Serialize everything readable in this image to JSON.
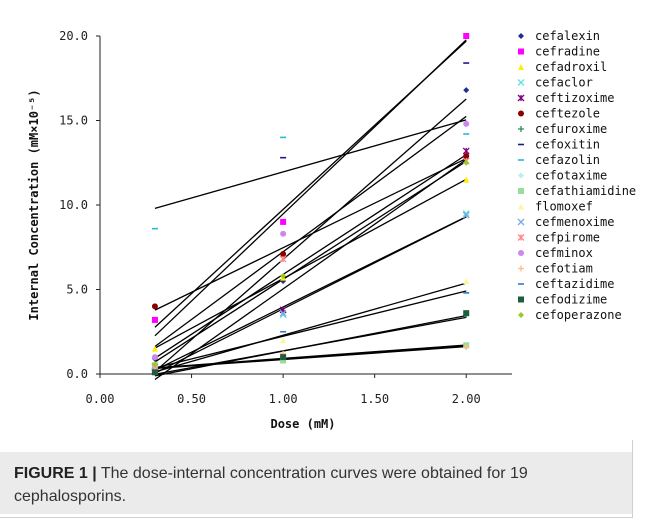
{
  "caption": {
    "label": "FIGURE 1 |",
    "text": " The dose-internal concentration curves were obtained for 19 cephalosporins."
  },
  "chart_data": {
    "type": "scatter",
    "title": "",
    "xlabel": "Dose (mM)",
    "ylabel": "Internal Concentration (mM×10⁻⁵)",
    "xlim": [
      0,
      2.25
    ],
    "ylim": [
      0,
      20
    ],
    "xticks": [
      "0.00",
      "0.50",
      "1.00",
      "1.50",
      "2.00"
    ],
    "yticks": [
      "0.0",
      "5.0",
      "10.0",
      "15.0",
      "20.0"
    ],
    "grid": false,
    "legend_position": "right",
    "x": [
      0.3,
      1.0,
      2.0
    ],
    "series": [
      {
        "name": "cefalexin",
        "marker": "diamond",
        "color": "#1f2f8f",
        "values": [
          0.9,
          5.5,
          16.8
        ]
      },
      {
        "name": "cefradine",
        "marker": "square",
        "color": "#ff00ff",
        "values": [
          3.2,
          9.0,
          20.0
        ]
      },
      {
        "name": "cefadroxil",
        "marker": "triangle",
        "color": "#ffee00",
        "values": [
          1.5,
          5.7,
          11.5
        ]
      },
      {
        "name": "cefaclor",
        "marker": "x",
        "color": "#66dddd",
        "values": [
          0.5,
          3.5,
          9.5
        ]
      },
      {
        "name": "ceftizoxime",
        "marker": "star",
        "color": "#800080",
        "values": [
          0.4,
          3.8,
          13.2
        ]
      },
      {
        "name": "ceftezole",
        "marker": "circle",
        "color": "#8b0000",
        "values": [
          4.0,
          7.1,
          12.9
        ]
      },
      {
        "name": "cefuroxime",
        "marker": "plus",
        "color": "#2e8b57",
        "values": [
          0.2,
          1.0,
          3.5
        ]
      },
      {
        "name": "cefoxitin",
        "marker": "dash",
        "color": "#1a1a8c",
        "values": [
          0.3,
          12.8,
          18.4
        ]
      },
      {
        "name": "cefazolin",
        "marker": "dash",
        "color": "#22bbdd",
        "values": [
          8.6,
          14.0,
          14.2
        ]
      },
      {
        "name": "cefotaxime",
        "marker": "diamond",
        "color": "#bbeeee",
        "values": [
          0.3,
          0.9,
          1.6
        ]
      },
      {
        "name": "cefathiamidine",
        "marker": "square",
        "color": "#99dd99",
        "values": [
          0.4,
          0.8,
          1.7
        ]
      },
      {
        "name": "flomoxef",
        "marker": "triangle",
        "color": "#fff599",
        "values": [
          0.3,
          2.0,
          5.5
        ]
      },
      {
        "name": "cefmenoxime",
        "marker": "x",
        "color": "#77aadd",
        "values": [
          0.2,
          3.6,
          9.4
        ]
      },
      {
        "name": "cefpirome",
        "marker": "star",
        "color": "#ff8888",
        "values": [
          0.4,
          6.8,
          12.6
        ]
      },
      {
        "name": "cefminox",
        "marker": "circle",
        "color": "#cc88ee",
        "values": [
          1.0,
          8.3,
          14.8
        ]
      },
      {
        "name": "cefotiam",
        "marker": "plus",
        "color": "#ffbb88",
        "values": [
          0.2,
          1.2,
          1.6
        ]
      },
      {
        "name": "ceftazidime",
        "marker": "dash",
        "color": "#3377cc",
        "values": [
          0.2,
          2.5,
          4.8
        ]
      },
      {
        "name": "cefodizime",
        "marker": "square",
        "color": "#1e5e3e",
        "values": [
          0.1,
          1.0,
          3.6
        ]
      },
      {
        "name": "cefoperazone",
        "marker": "diamond",
        "color": "#99cc22",
        "values": [
          0.6,
          5.8,
          12.5
        ]
      }
    ]
  }
}
